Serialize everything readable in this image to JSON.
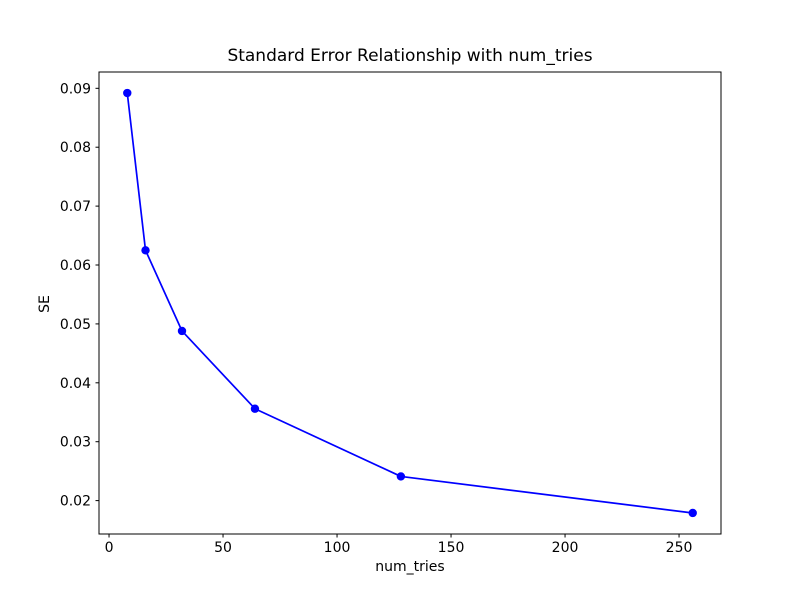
{
  "chart_data": {
    "type": "line",
    "title": "Standard Error Relationship with num_tries",
    "xlabel": "num_tries",
    "ylabel": "SE",
    "series": [
      {
        "name": "SE",
        "x": [
          8,
          16,
          32,
          64,
          128,
          256
        ],
        "y": [
          0.0892,
          0.0625,
          0.0488,
          0.0356,
          0.0241,
          0.0179
        ]
      }
    ],
    "xlim": [
      -4.4,
      268.4
    ],
    "ylim": [
      0.01433,
      0.09277
    ],
    "xticks": {
      "values": [
        0,
        50,
        100,
        150,
        200,
        250
      ],
      "labels": [
        "0",
        "50",
        "100",
        "150",
        "200",
        "250"
      ]
    },
    "yticks": {
      "values": [
        0.02,
        0.03,
        0.04,
        0.05,
        0.06,
        0.07,
        0.08,
        0.09
      ],
      "labels": [
        "0.02",
        "0.03",
        "0.04",
        "0.05",
        "0.06",
        "0.07",
        "0.08",
        "0.09"
      ]
    },
    "line_color": "#0000ff",
    "marker": "o",
    "marker_radius": 4.2,
    "line_width": 1.7,
    "grid": false,
    "legend": null,
    "background": "#ffffff",
    "axes_color": "#000000"
  }
}
